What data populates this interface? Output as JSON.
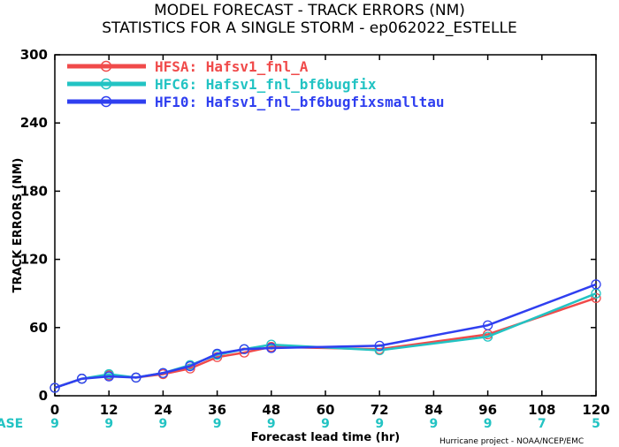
{
  "chart_data": {
    "type": "line",
    "title": "MODEL FORECAST - TRACK ERRORS (NM)",
    "subtitle": "STATISTICS FOR A SINGLE STORM - ep062022_ESTELLE",
    "xlabel": "Forecast lead time (hr)",
    "ylabel": "TRACK ERRORS (NM)",
    "xlim": [
      0,
      120
    ],
    "ylim": [
      0,
      300
    ],
    "xticks": [
      0,
      12,
      24,
      36,
      48,
      60,
      72,
      84,
      96,
      108,
      120
    ],
    "yticks": [
      0,
      60,
      120,
      180,
      240,
      300
    ],
    "xtick_labels": [
      "0",
      "12",
      "24",
      "36",
      "48",
      "60",
      "72",
      "84",
      "96",
      "108",
      "120"
    ],
    "ytick_labels": [
      "0",
      "60",
      "120",
      "180",
      "240",
      "300"
    ],
    "legend_position": "top-left",
    "series": [
      {
        "name": "HFSA:  Hafsv1_fnl_A",
        "color": "#f04a4a",
        "x": [
          0,
          6,
          12,
          18,
          24,
          30,
          36,
          42,
          48,
          72,
          96,
          120
        ],
        "y": [
          7,
          15,
          18,
          16,
          19,
          24,
          34,
          38,
          43,
          41,
          54,
          86
        ]
      },
      {
        "name": "HFC6:  Hafsv1_fnl_bf6bugfix",
        "color": "#22c3c3",
        "x": [
          0,
          6,
          12,
          18,
          24,
          30,
          36,
          42,
          48,
          72,
          96,
          120
        ],
        "y": [
          7,
          15,
          19,
          16,
          20,
          27,
          36,
          41,
          45,
          40,
          52,
          90
        ]
      },
      {
        "name": "HF10:  Hafsv1_fnl_bf6bugfixsmalltau",
        "color": "#2f3ff0",
        "x": [
          0,
          6,
          12,
          18,
          24,
          30,
          36,
          42,
          48,
          72,
          96,
          120
        ],
        "y": [
          7,
          15,
          17,
          16,
          20,
          26,
          37,
          41,
          42,
          44,
          62,
          98
        ]
      }
    ],
    "case_label": "#CASE",
    "case_x": [
      0,
      12,
      24,
      36,
      48,
      60,
      72,
      84,
      96,
      108,
      120
    ],
    "case_counts": [
      "9",
      "9",
      "9",
      "9",
      "9",
      "9",
      "9",
      "9",
      "9",
      "7",
      "5"
    ],
    "credit": "Hurricane project - NOAA/NCEP/EMC"
  }
}
